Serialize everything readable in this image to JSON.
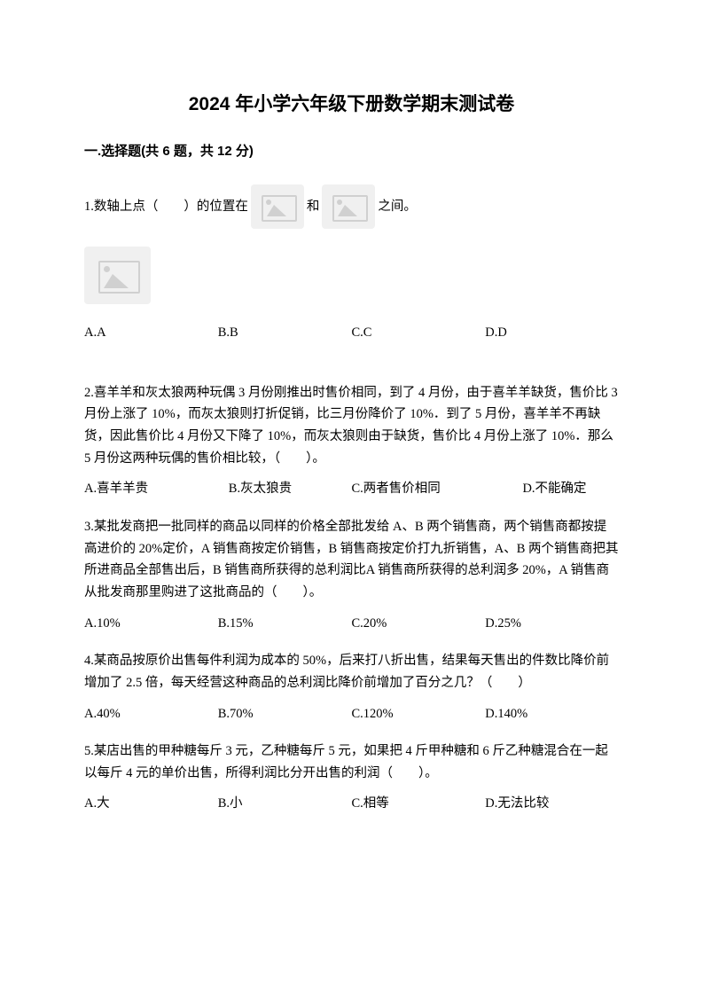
{
  "title": "2024 年小学六年级下册数学期末测试卷",
  "section1": {
    "header": "一.选择题(共 6 题，共 12 分)",
    "q1": {
      "text_before": "1.数轴上点（　　）的位置在",
      "text_mid": "和",
      "text_after": "之间。",
      "opt_a": "A.A",
      "opt_b": "B.B",
      "opt_c": "C.C",
      "opt_d": "D.D"
    },
    "q2": {
      "text": "2.喜羊羊和灰太狼两种玩偶 3 月份刚推出时售价相同，到了 4 月份，由于喜羊羊缺货，售价比 3 月份上涨了 10%，而灰太狼则打折促销，比三月份降价了 10%．到了 5 月份，喜羊羊不再缺货，因此售价比 4 月份又下降了 10%，而灰太狼则由于缺货，售价比 4 月份上涨了 10%．那么 5 月份这两种玩偶的售价相比较，（　　）。",
      "opt_a": "A.喜羊羊贵",
      "opt_b": "B.灰太狼贵",
      "opt_c": "C.两者售价相同",
      "opt_d": "D.不能确定"
    },
    "q3": {
      "text": "3.某批发商把一批同样的商品以同样的价格全部批发给 A、B 两个销售商，两个销售商都按提高进价的 20%定价，A 销售商按定价销售，B 销售商按定价打九折销售，A、B 两个销售商把其所进商品全部售出后，B 销售商所获得的总利润比A 销售商所获得的总利润多 20%，A 销售商从批发商那里购进了这批商品的（　　）。",
      "opt_a": "A.10%",
      "opt_b": "B.15%",
      "opt_c": "C.20%",
      "opt_d": "D.25%"
    },
    "q4": {
      "text": "4.某商品按原价出售每件利润为成本的 50%，后来打八折出售，结果每天售出的件数比降价前增加了 2.5 倍，每天经营这种商品的总利润比降价前增加了百分之几？（　　）",
      "opt_a": "A.40%",
      "opt_b": "B.70%",
      "opt_c": "C.120%",
      "opt_d": "D.140%"
    },
    "q5": {
      "text": "5.某店出售的甲种糖每斤 3 元，乙种糖每斤 5 元，如果把 4 斤甲种糖和 6 斤乙种糖混合在一起以每斤 4 元的单价出售，所得利润比分开出售的利润（　　）。",
      "opt_a": "A.大",
      "opt_b": "B.小",
      "opt_c": "C.相等",
      "opt_d": "D.无法比较"
    }
  }
}
